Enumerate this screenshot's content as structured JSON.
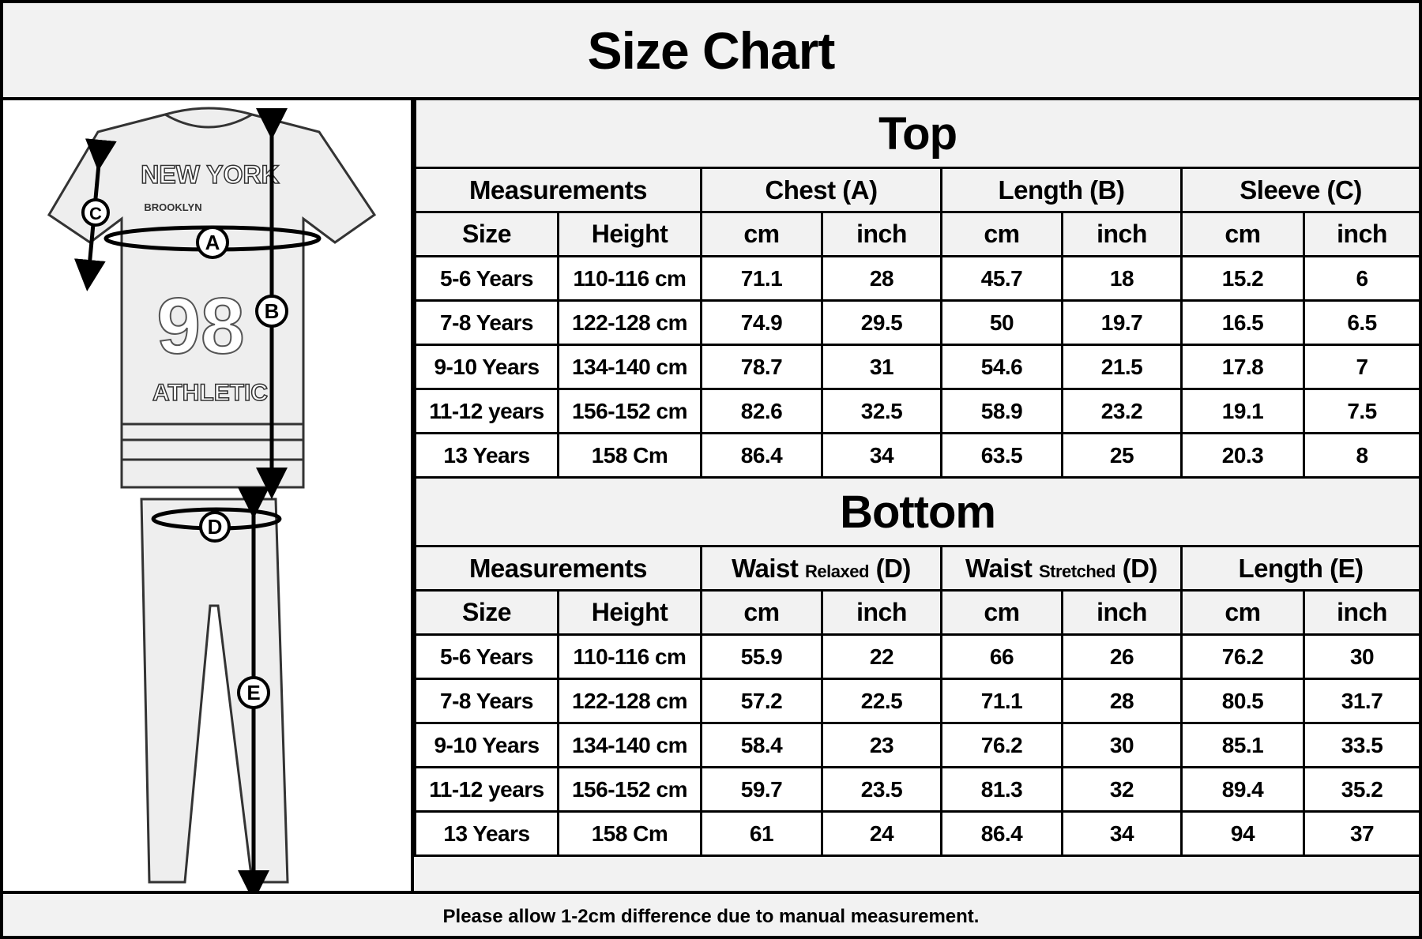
{
  "title": "Size Chart",
  "illustration": {
    "labels": [
      "A",
      "B",
      "C",
      "D",
      "E"
    ],
    "shirt_text": [
      "NEW YORK",
      "BROOKLYN",
      "98",
      "ATHLETIC"
    ]
  },
  "top": {
    "heading": "Top",
    "groups": [
      "Measurements",
      "Chest (A)",
      "Length (B)",
      "Sleeve (C)"
    ],
    "subheaders": [
      "Size",
      "Height",
      "cm",
      "inch",
      "cm",
      "inch",
      "cm",
      "inch"
    ],
    "rows": [
      [
        "5-6 Years",
        "110-116 cm",
        "71.1",
        "28",
        "45.7",
        "18",
        "15.2",
        "6"
      ],
      [
        "7-8 Years",
        "122-128 cm",
        "74.9",
        "29.5",
        "50",
        "19.7",
        "16.5",
        "6.5"
      ],
      [
        "9-10 Years",
        "134-140 cm",
        "78.7",
        "31",
        "54.6",
        "21.5",
        "17.8",
        "7"
      ],
      [
        "11-12 years",
        "156-152 cm",
        "82.6",
        "32.5",
        "58.9",
        "23.2",
        "19.1",
        "7.5"
      ],
      [
        "13 Years",
        "158 Cm",
        "86.4",
        "34",
        "63.5",
        "25",
        "20.3",
        "8"
      ]
    ]
  },
  "bottom": {
    "heading": "Bottom",
    "groups": [
      {
        "main": "Measurements",
        "sub": "",
        "suffix": ""
      },
      {
        "main": "Waist",
        "sub": "Relaxed",
        "suffix": "(D)"
      },
      {
        "main": "Waist",
        "sub": "Stretched",
        "suffix": "(D)"
      },
      {
        "main": "Length (E)",
        "sub": "",
        "suffix": ""
      }
    ],
    "subheaders": [
      "Size",
      "Height",
      "cm",
      "inch",
      "cm",
      "inch",
      "cm",
      "inch"
    ],
    "rows": [
      [
        "5-6 Years",
        "110-116 cm",
        "55.9",
        "22",
        "66",
        "26",
        "76.2",
        "30"
      ],
      [
        "7-8 Years",
        "122-128 cm",
        "57.2",
        "22.5",
        "71.1",
        "28",
        "80.5",
        "31.7"
      ],
      [
        "9-10 Years",
        "134-140 cm",
        "58.4",
        "23",
        "76.2",
        "30",
        "85.1",
        "33.5"
      ],
      [
        "11-12 years",
        "156-152 cm",
        "59.7",
        "23.5",
        "81.3",
        "32",
        "89.4",
        "35.2"
      ],
      [
        "13 Years",
        "158 Cm",
        "61",
        "24",
        "86.4",
        "34",
        "94",
        "37"
      ]
    ]
  },
  "footer": "Please allow 1-2cm difference due to manual measurement."
}
